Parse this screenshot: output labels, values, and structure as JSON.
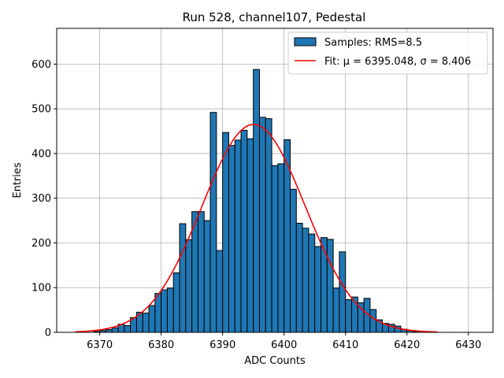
{
  "chart_data": {
    "type": "bar",
    "title": "Run 528, channel107, Pedestal",
    "xlabel": "ADC Counts",
    "ylabel": "Entries",
    "xlim": [
      6363,
      6434
    ],
    "ylim": [
      0,
      680
    ],
    "xticks": [
      6370,
      6380,
      6390,
      6400,
      6410,
      6420,
      6430
    ],
    "yticks": [
      0,
      100,
      200,
      300,
      400,
      500,
      600
    ],
    "grid": true,
    "legend_position": "top-right",
    "histogram": {
      "name": "Samples: RMS=8.5",
      "color": "#1f77b4",
      "bin_width": 1,
      "bin_start": 6369,
      "counts": [
        2,
        4,
        6,
        10,
        18,
        15,
        33,
        45,
        43,
        60,
        87,
        95,
        99,
        133,
        243,
        207,
        270,
        270,
        250,
        492,
        183,
        447,
        418,
        430,
        452,
        433,
        588,
        481,
        478,
        373,
        377,
        431,
        320,
        244,
        233,
        220,
        192,
        212,
        208,
        99,
        180,
        73,
        79,
        66,
        76,
        51,
        28,
        20,
        18,
        14,
        7,
        4,
        2
      ]
    },
    "fit": {
      "name": "Fit: μ = 6395.048, σ = 8.406",
      "color": "#ff0000",
      "mu": 6395.048,
      "sigma": 8.406,
      "amplitude": 465,
      "x_range": [
        6366,
        6425
      ]
    }
  }
}
